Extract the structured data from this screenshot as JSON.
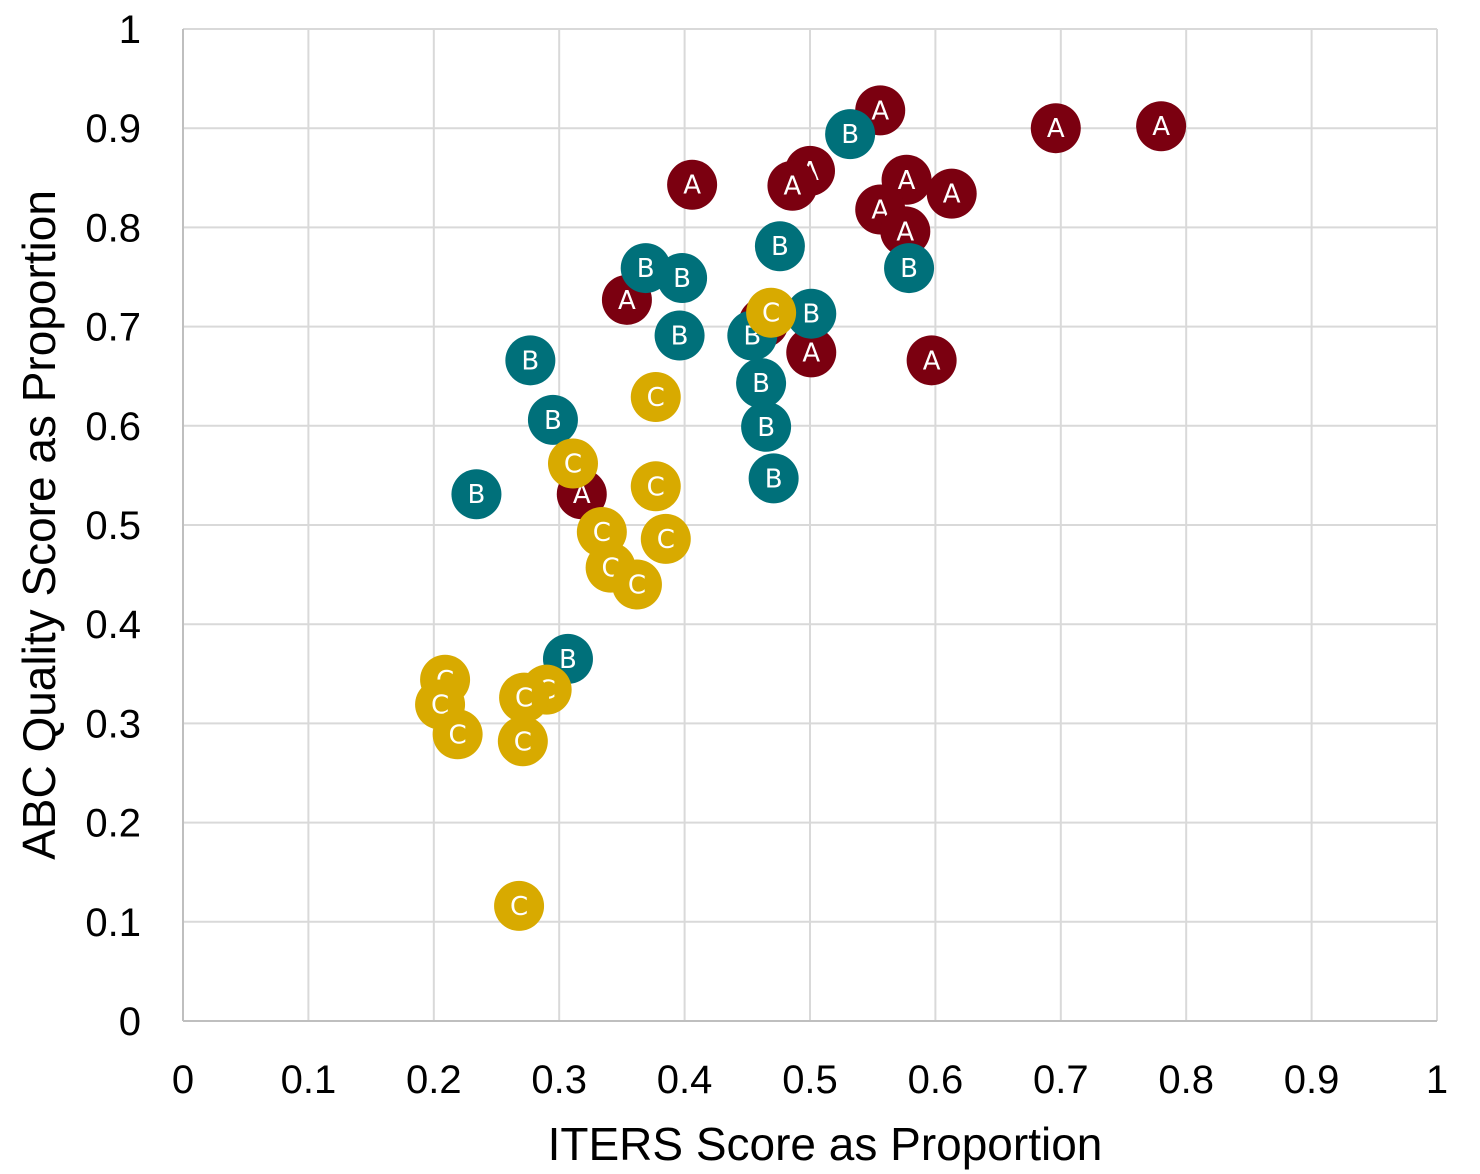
{
  "chart_data": {
    "type": "scatter",
    "title": "",
    "xlabel": "ITERS Score as Proportion",
    "ylabel": "ABC Quality Score as Proportion",
    "xlim": [
      0,
      1
    ],
    "ylim": [
      0,
      1
    ],
    "grid": true,
    "x_ticks": [
      "0",
      "0.1",
      "0.2",
      "0.3",
      "0.4",
      "0.5",
      "0.6",
      "0.7",
      "0.8",
      "0.9",
      "1"
    ],
    "y_ticks": [
      "0",
      "0.1",
      "0.2",
      "0.3",
      "0.4",
      "0.5",
      "0.6",
      "0.7",
      "0.8",
      "0.9",
      "1"
    ],
    "series": [
      {
        "label": "A",
        "color": "#7b0010",
        "points": [
          [
            0.556,
            0.918
          ],
          [
            0.696,
            0.9
          ],
          [
            0.78,
            0.902
          ],
          [
            0.5,
            0.857
          ],
          [
            0.486,
            0.842
          ],
          [
            0.406,
            0.843
          ],
          [
            0.577,
            0.848
          ],
          [
            0.613,
            0.834
          ],
          [
            0.556,
            0.818
          ],
          [
            0.576,
            0.796
          ],
          [
            0.354,
            0.727
          ],
          [
            0.463,
            0.704
          ],
          [
            0.501,
            0.674
          ],
          [
            0.597,
            0.666
          ],
          [
            0.318,
            0.531
          ]
        ]
      },
      {
        "label": "B",
        "color": "#00707a",
        "points": [
          [
            0.532,
            0.894
          ],
          [
            0.476,
            0.781
          ],
          [
            0.369,
            0.759
          ],
          [
            0.398,
            0.749
          ],
          [
            0.579,
            0.759
          ],
          [
            0.501,
            0.713
          ],
          [
            0.396,
            0.691
          ],
          [
            0.454,
            0.691
          ],
          [
            0.277,
            0.666
          ],
          [
            0.461,
            0.643
          ],
          [
            0.465,
            0.599
          ],
          [
            0.295,
            0.606
          ],
          [
            0.471,
            0.547
          ],
          [
            0.234,
            0.531
          ],
          [
            0.307,
            0.365
          ]
        ]
      },
      {
        "label": "C",
        "color": "#d8aa00",
        "points": [
          [
            0.469,
            0.714
          ],
          [
            0.377,
            0.629
          ],
          [
            0.311,
            0.562
          ],
          [
            0.377,
            0.539
          ],
          [
            0.334,
            0.493
          ],
          [
            0.385,
            0.486
          ],
          [
            0.341,
            0.457
          ],
          [
            0.362,
            0.44
          ],
          [
            0.209,
            0.344
          ],
          [
            0.29,
            0.334
          ],
          [
            0.272,
            0.326
          ],
          [
            0.205,
            0.319
          ],
          [
            0.219,
            0.289
          ],
          [
            0.271,
            0.282
          ],
          [
            0.268,
            0.116
          ]
        ]
      }
    ]
  }
}
